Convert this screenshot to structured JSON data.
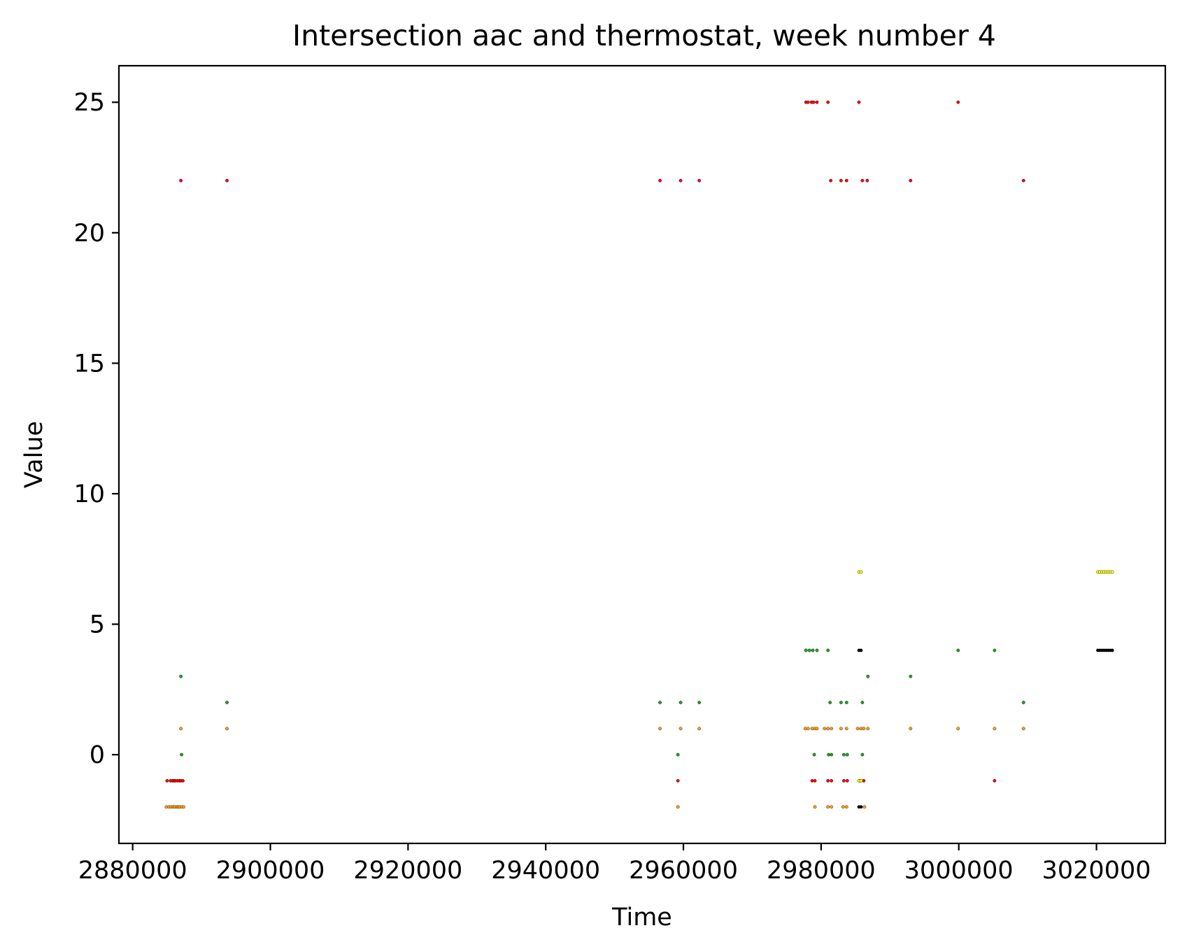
{
  "chart_data": {
    "type": "scatter",
    "title": "Intersection aac and thermostat, week number 4",
    "xlabel": "Time",
    "ylabel": "Value",
    "xlim": [
      2878000,
      3030000
    ],
    "ylim": [
      -3.4,
      26.4
    ],
    "xticks": [
      2880000,
      2900000,
      2920000,
      2940000,
      2960000,
      2980000,
      3000000,
      3020000
    ],
    "xtick_labels": [
      "2880000",
      "2900000",
      "2920000",
      "2940000",
      "2960000",
      "2980000",
      "3000000",
      "3020000"
    ],
    "yticks": [
      0,
      5,
      10,
      15,
      20,
      25
    ],
    "ytick_labels": [
      "0",
      "5",
      "10",
      "15",
      "20",
      "25"
    ],
    "grid": false,
    "series": [
      {
        "name": "red",
        "color": "#ff0000",
        "points": [
          [
            2887000,
            22
          ],
          [
            2893700,
            22
          ],
          [
            2956600,
            22
          ],
          [
            2959600,
            22
          ],
          [
            2962300,
            22
          ],
          [
            2977800,
            25
          ],
          [
            2978100,
            25
          ],
          [
            2978600,
            25
          ],
          [
            2978900,
            25
          ],
          [
            2979400,
            25
          ],
          [
            2981000,
            25
          ],
          [
            2985500,
            25
          ],
          [
            2999900,
            25
          ],
          [
            2981400,
            22
          ],
          [
            2982900,
            22
          ],
          [
            2983700,
            22
          ],
          [
            2986000,
            22
          ],
          [
            2986700,
            22
          ],
          [
            2993000,
            22
          ],
          [
            3009400,
            22
          ],
          [
            2885000,
            -1
          ],
          [
            2885500,
            -1
          ],
          [
            2885800,
            -1
          ],
          [
            2886000,
            -1
          ],
          [
            2886200,
            -1
          ],
          [
            2886500,
            -1
          ],
          [
            2886800,
            -1
          ],
          [
            2887000,
            -1
          ],
          [
            2887300,
            -1
          ],
          [
            2959200,
            -1
          ],
          [
            2978700,
            -1
          ],
          [
            2979100,
            -1
          ],
          [
            2981000,
            -1
          ],
          [
            2981500,
            -1
          ],
          [
            2983300,
            -1
          ],
          [
            2983800,
            -1
          ],
          [
            2985600,
            -1
          ],
          [
            2986200,
            -1
          ],
          [
            3005200,
            -1
          ]
        ]
      },
      {
        "name": "orange",
        "color": "#ff9f1c",
        "points": [
          [
            2887000,
            1
          ],
          [
            2893700,
            1
          ],
          [
            2956600,
            1
          ],
          [
            2959600,
            1
          ],
          [
            2962300,
            1
          ],
          [
            2977700,
            1
          ],
          [
            2978100,
            1
          ],
          [
            2978700,
            1
          ],
          [
            2979100,
            1
          ],
          [
            2979400,
            1
          ],
          [
            2980500,
            1
          ],
          [
            2981000,
            1
          ],
          [
            2981500,
            1
          ],
          [
            2982900,
            1
          ],
          [
            2983700,
            1
          ],
          [
            2985300,
            1
          ],
          [
            2985800,
            1
          ],
          [
            2986200,
            1
          ],
          [
            2986800,
            1
          ],
          [
            2993000,
            1
          ],
          [
            2999900,
            1
          ],
          [
            3005200,
            1
          ],
          [
            3009400,
            1
          ],
          [
            2884900,
            -2
          ],
          [
            2885300,
            -2
          ],
          [
            2885600,
            -2
          ],
          [
            2885900,
            -2
          ],
          [
            2886100,
            -2
          ],
          [
            2886400,
            -2
          ],
          [
            2886600,
            -2
          ],
          [
            2886800,
            -2
          ],
          [
            2887100,
            -2
          ],
          [
            2887400,
            -2
          ],
          [
            2959200,
            -2
          ],
          [
            2979100,
            -2
          ],
          [
            2981000,
            -2
          ],
          [
            2981500,
            -2
          ],
          [
            2983200,
            -2
          ],
          [
            2983700,
            -2
          ],
          [
            2986300,
            -2
          ]
        ]
      },
      {
        "name": "green",
        "color": "#1fa51f",
        "points": [
          [
            2887000,
            3
          ],
          [
            2893700,
            2
          ],
          [
            2887100,
            0
          ],
          [
            2956600,
            2
          ],
          [
            2959600,
            2
          ],
          [
            2962300,
            2
          ],
          [
            2959200,
            0
          ],
          [
            2977800,
            4
          ],
          [
            2978300,
            4
          ],
          [
            2978800,
            4
          ],
          [
            2979400,
            4
          ],
          [
            2981000,
            4
          ],
          [
            2999900,
            4
          ],
          [
            3005200,
            4
          ],
          [
            2986800,
            3
          ],
          [
            2993000,
            3
          ],
          [
            2981300,
            2
          ],
          [
            2982900,
            2
          ],
          [
            2983700,
            2
          ],
          [
            2986000,
            2
          ],
          [
            3009400,
            2
          ],
          [
            2979000,
            0
          ],
          [
            2981100,
            0
          ],
          [
            2981500,
            0
          ],
          [
            2983300,
            0
          ],
          [
            2983800,
            0
          ],
          [
            2986000,
            0
          ]
        ]
      },
      {
        "name": "yellow",
        "color": "#ffff00",
        "points": [
          [
            2985500,
            7
          ],
          [
            2985800,
            7
          ],
          [
            2985500,
            -1
          ],
          [
            2985800,
            -1
          ],
          [
            3020200,
            7
          ],
          [
            3020500,
            7
          ],
          [
            3020800,
            7
          ],
          [
            3021100,
            7
          ],
          [
            3021400,
            7
          ],
          [
            3021700,
            7
          ],
          [
            3022000,
            7
          ],
          [
            3022300,
            7
          ]
        ]
      },
      {
        "name": "black",
        "color": "#000000",
        "points": [
          [
            2985500,
            4
          ],
          [
            2985800,
            4
          ],
          [
            2985500,
            -2
          ],
          [
            2985800,
            -2
          ],
          [
            3020200,
            4
          ],
          [
            3020500,
            4
          ],
          [
            3020800,
            4
          ],
          [
            3021100,
            4
          ],
          [
            3021400,
            4
          ],
          [
            3021700,
            4
          ],
          [
            3022000,
            4
          ],
          [
            3022300,
            4
          ]
        ]
      }
    ]
  }
}
